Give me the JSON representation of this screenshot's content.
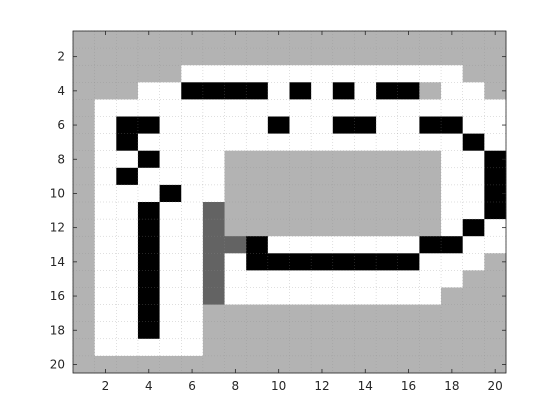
{
  "chart_data": {
    "type": "heatmap",
    "title": "",
    "xlabel": "",
    "ylabel": "",
    "xlim": [
      0.5,
      20.5
    ],
    "ylim": [
      0.5,
      20.5
    ],
    "y_axis_reversed": true,
    "grid": "minor-dotted",
    "xticks": [
      2,
      4,
      6,
      8,
      10,
      12,
      14,
      16,
      18,
      20
    ],
    "yticks": [
      2,
      4,
      6,
      8,
      10,
      12,
      14,
      16,
      18,
      20
    ],
    "colors": {
      "0": "#ffffff",
      "1": "#b3b3b3",
      "2": "#636363",
      "3": "#000000"
    },
    "grid_values": [
      "11111111111111111111",
      "11111111111111111111",
      "11111000000000000011",
      "11100333303030331001",
      "10000000000000000000",
      "10330000030033003300",
      "10300000000000000030",
      "10030001111111111003",
      "10300001111111111003",
      "10003001111111111003",
      "10030021111111111003",
      "10030021111111111030",
      "10030022300000003300",
      "10030020333333330001",
      "10030020000000000011",
      "10030020000000000111",
      "10030011111111111111",
      "10030011111111111111",
      "10000011111111111111",
      "11111111111111111111"
    ]
  }
}
